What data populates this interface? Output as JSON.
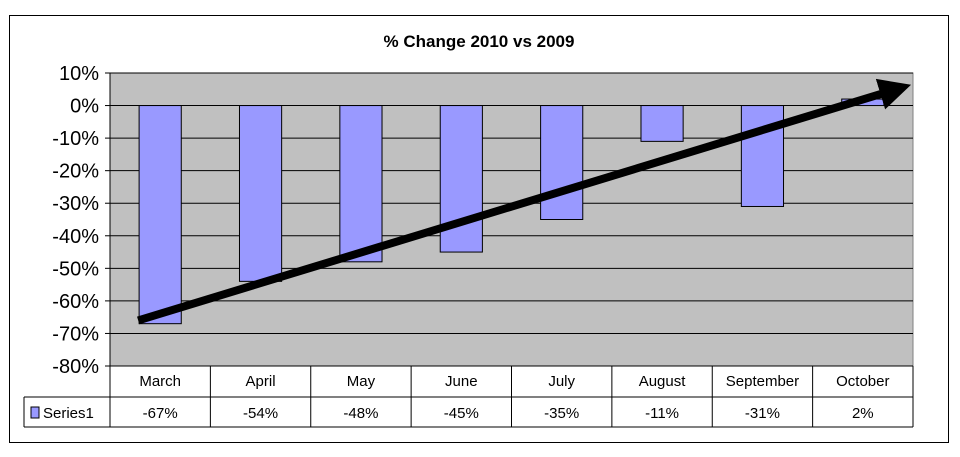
{
  "chart_data": {
    "type": "bar",
    "title": "% Change  2010 vs 2009",
    "categories": [
      "March",
      "April",
      "May",
      "June",
      "July",
      "August",
      "September",
      "October"
    ],
    "series": [
      {
        "name": "Series1",
        "values": [
          -67,
          -54,
          -48,
          -45,
          -35,
          -11,
          -31,
          2
        ],
        "color": "#9999ff"
      }
    ],
    "data_labels": [
      "-67%",
      "-54%",
      "-48%",
      "-45%",
      "-35%",
      "-11%",
      "-31%",
      "2%"
    ],
    "ylim": [
      -80,
      10
    ],
    "ytick_values": [
      10,
      0,
      -10,
      -20,
      -30,
      -40,
      -50,
      -60,
      -70,
      -80
    ],
    "ytick_labels": [
      "10%",
      "0%",
      "-10%",
      "-20%",
      "-30%",
      "-40%",
      "-50%",
      "-60%",
      "-70%",
      "-80%"
    ],
    "grid": true,
    "plot_background": "#c0c0c0",
    "legend": "data-table",
    "annotation": {
      "type": "trend-arrow",
      "from": {
        "category": "March",
        "y": -66
      },
      "to": {
        "category": "October",
        "y": 4
      },
      "color": "#000000"
    }
  }
}
